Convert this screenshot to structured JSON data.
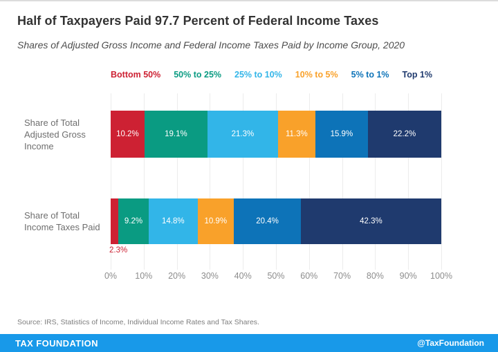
{
  "header": {
    "title": "Half of Taxpayers Paid 97.7 Percent of Federal Income Taxes",
    "subtitle": "Shares of Adjusted Gross Income and Federal Income Taxes Paid by Income Group, 2020"
  },
  "chart_data": {
    "type": "bar",
    "orientation": "horizontal-stacked",
    "title": "Half of Taxpayers Paid 97.7 Percent of Federal Income Taxes",
    "groups": [
      "Bottom 50%",
      "50% to 25%",
      "25% to 10%",
      "10% to 5%",
      "5% to 1%",
      "Top 1%"
    ],
    "group_colors": [
      "#cd2133",
      "#0a9b82",
      "#32b5e8",
      "#f9a12a",
      "#0d73b8",
      "#1f3a6e"
    ],
    "categories": [
      "Share of Total Adjusted Gross Income",
      "Share of Total Income Taxes Paid"
    ],
    "series": [
      {
        "name": "Share of Total Adjusted Gross Income",
        "label_lines": [
          "Share of Total",
          "Adjusted Gross",
          "Income"
        ],
        "values": [
          10.2,
          19.1,
          21.3,
          11.3,
          15.9,
          22.2
        ]
      },
      {
        "name": "Share of Total Income Taxes Paid",
        "label_lines": [
          "Share of Total",
          "Income Taxes Paid"
        ],
        "values": [
          2.3,
          9.2,
          14.8,
          10.9,
          20.4,
          42.3
        ]
      }
    ],
    "x_ticks": [
      "0%",
      "10%",
      "20%",
      "30%",
      "40%",
      "50%",
      "60%",
      "70%",
      "80%",
      "90%",
      "100%"
    ],
    "xlim": [
      0,
      100
    ],
    "grid": true,
    "legend_position": "top",
    "value_label_format": "#.#%"
  },
  "source_note": "Source: IRS, Statistics of Income, Individual Income Rates and Tax Shares.",
  "footer": {
    "brand": "TAX FOUNDATION",
    "handle": "@TaxFoundation",
    "bar_color": "#1899e9"
  }
}
